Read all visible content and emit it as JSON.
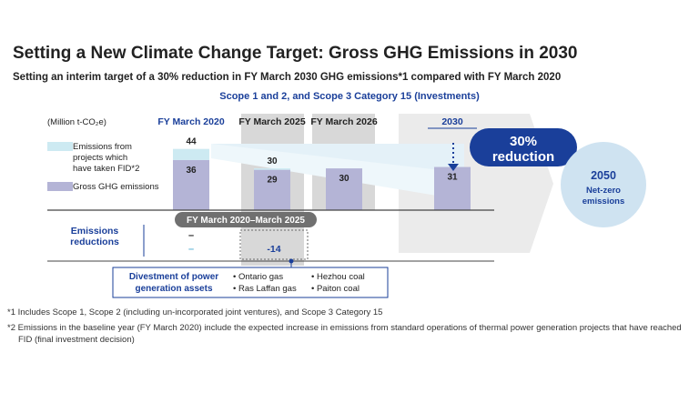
{
  "title": "Setting a New Climate Change Target: Gross GHG Emissions in 2030",
  "subtitle": "Setting an interim target of a 30% reduction in FY March 2030 GHG emissions*1 compared with FY March 2020",
  "chart_data": {
    "type": "bar",
    "title": "Scope 1 and 2, and Scope 3 Category 15 (Investments)",
    "ylabel": "(Million t-CO₂e)",
    "categories": [
      "FY March 2020",
      "FY March 2025",
      "FY March 2026",
      "2030"
    ],
    "series": [
      {
        "name": "Gross GHG emissions",
        "values": [
          36,
          29,
          30,
          31
        ],
        "color": "#b4b4d6"
      },
      {
        "name": "Emissions from projects which have taken FID*2",
        "values": [
          8,
          1,
          0,
          0
        ],
        "color": "#cdeaf2"
      }
    ],
    "totals": [
      44,
      30,
      null,
      null
    ],
    "value_labels": [
      "36",
      "29",
      "30",
      "31"
    ],
    "total_labels": [
      "44",
      "30",
      "",
      ""
    ],
    "ylim": [
      0,
      50
    ],
    "legend": [
      {
        "label": "Emissions from projects which have taken FID*2",
        "color": "#cdeaf2"
      },
      {
        "label": "Gross GHG emissions",
        "color": "#b4b4d6"
      }
    ],
    "target_badge": "30% reduction",
    "goal_2050": {
      "year": "2050",
      "label": "Net-zero emissions"
    },
    "reductions": {
      "label": "Emissions reductions",
      "period": "FY March 2020–March 2025",
      "value_baseline": "–",
      "value_baseline_alt": "–",
      "value": "-14"
    },
    "divestment": {
      "label": "Divestment of power generation assets",
      "assets": [
        "Ontario gas",
        "Hezhou coal",
        "Ras Laffan gas",
        "Paiton coal"
      ]
    },
    "colors": {
      "navy": "#1a3f9a",
      "bar": "#b4b4d6",
      "fid": "#cdeaf2",
      "band": "#d8d8d8",
      "light_blue": "#e4f1f8",
      "circle": "#cfe3f1"
    }
  },
  "footnotes": [
    "*1 Includes Scope 1, Scope 2 (including un-incorporated joint ventures), and Scope 3 Category 15",
    "*2 Emissions in the baseline year (FY March 2020) include the expected increase in emissions from standard operations of thermal power generation projects that have reached FID (final investment decision)"
  ]
}
